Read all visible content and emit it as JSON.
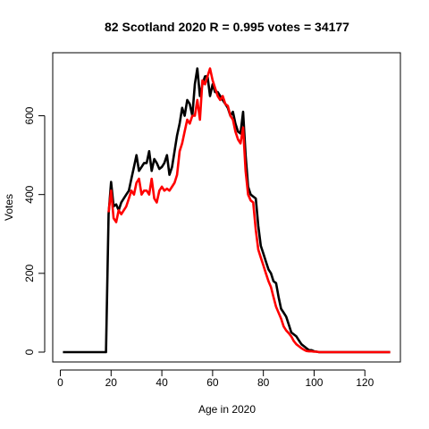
{
  "chart_data": {
    "type": "line",
    "title": "82 Scotland 2020 R = 0.995 votes = 34177",
    "xlabel": "Age in 2020",
    "ylabel": "Votes",
    "xlim": [
      -3,
      134
    ],
    "ylim": [
      -25,
      760
    ],
    "xticks": [
      0,
      20,
      40,
      60,
      80,
      100,
      120
    ],
    "yticks": [
      0,
      200,
      400,
      600
    ],
    "grid": false,
    "legend": "none",
    "series": [
      {
        "color": "#000000",
        "x": [
          1,
          2,
          3,
          4,
          5,
          6,
          7,
          8,
          9,
          10,
          11,
          12,
          13,
          14,
          15,
          16,
          17,
          18,
          19,
          20,
          21,
          22,
          23,
          24,
          25,
          26,
          27,
          28,
          29,
          30,
          31,
          32,
          33,
          34,
          35,
          36,
          37,
          38,
          39,
          40,
          41,
          42,
          43,
          44,
          45,
          46,
          47,
          48,
          49,
          50,
          51,
          52,
          53,
          54,
          55,
          56,
          57,
          58,
          59,
          60,
          61,
          62,
          63,
          64,
          65,
          66,
          67,
          68,
          69,
          70,
          71,
          72,
          73,
          74,
          75,
          76,
          77,
          78,
          79,
          80,
          81,
          82,
          83,
          84,
          85,
          86,
          87,
          88,
          89,
          90,
          91,
          92,
          93,
          94,
          95,
          96,
          97,
          98,
          99,
          100,
          101,
          102,
          103,
          104,
          105,
          106,
          107,
          108,
          109,
          110,
          111,
          112,
          113,
          114,
          115,
          116,
          117,
          118,
          119,
          120,
          121,
          122,
          123,
          124,
          125,
          126,
          127,
          128,
          129,
          130
        ],
        "y": [
          0,
          0,
          0,
          0,
          0,
          0,
          0,
          0,
          0,
          0,
          0,
          0,
          0,
          0,
          0,
          0,
          0,
          0,
          350,
          432,
          370,
          375,
          360,
          380,
          390,
          400,
          410,
          440,
          470,
          500,
          460,
          470,
          480,
          480,
          510,
          460,
          490,
          480,
          465,
          470,
          480,
          500,
          450,
          470,
          510,
          550,
          580,
          620,
          600,
          640,
          630,
          600,
          680,
          720,
          650,
          680,
          700,
          700,
          650,
          680,
          660,
          660,
          650,
          640,
          630,
          620,
          600,
          610,
          580,
          560,
          555,
          610,
          500,
          420,
          400,
          395,
          390,
          320,
          270,
          250,
          230,
          210,
          200,
          180,
          175,
          140,
          110,
          100,
          90,
          70,
          50,
          45,
          40,
          30,
          20,
          15,
          10,
          5,
          5,
          2,
          1,
          0,
          0,
          0,
          0,
          0,
          0,
          0,
          0,
          0,
          0,
          0,
          0,
          0,
          0,
          0,
          0,
          0,
          0,
          0,
          0,
          0,
          0,
          0,
          0,
          0,
          0,
          0,
          0,
          0
        ]
      },
      {
        "color": "#ff0000",
        "x": [
          19,
          20,
          21,
          22,
          23,
          24,
          25,
          26,
          27,
          28,
          29,
          30,
          31,
          32,
          33,
          34,
          35,
          36,
          37,
          38,
          39,
          40,
          41,
          42,
          43,
          44,
          45,
          46,
          47,
          48,
          49,
          50,
          51,
          52,
          53,
          54,
          55,
          56,
          57,
          58,
          59,
          60,
          61,
          62,
          63,
          64,
          65,
          66,
          67,
          68,
          69,
          70,
          71,
          72,
          73,
          74,
          75,
          76,
          77,
          78,
          79,
          80,
          81,
          82,
          83,
          84,
          85,
          86,
          87,
          88,
          89,
          90,
          91,
          92,
          93,
          94,
          95,
          96,
          97,
          98,
          99,
          100,
          101,
          102,
          103,
          104,
          105,
          106,
          107,
          108,
          109,
          110,
          111,
          112,
          113,
          114,
          115,
          116,
          117,
          118,
          119,
          120,
          121,
          122,
          123,
          124,
          125,
          126,
          127,
          128,
          129,
          130
        ],
        "y": [
          355,
          410,
          340,
          330,
          360,
          350,
          360,
          370,
          390,
          410,
          400,
          430,
          440,
          400,
          410,
          410,
          400,
          440,
          390,
          380,
          410,
          420,
          410,
          415,
          410,
          420,
          430,
          450,
          510,
          530,
          560,
          590,
          580,
          600,
          600,
          640,
          590,
          690,
          680,
          700,
          720,
          690,
          670,
          650,
          640,
          650,
          630,
          625,
          600,
          590,
          560,
          540,
          530,
          570,
          460,
          400,
          385,
          380,
          310,
          260,
          240,
          220,
          200,
          180,
          165,
          140,
          115,
          100,
          85,
          65,
          55,
          48,
          40,
          28,
          20,
          15,
          10,
          6,
          3,
          2,
          2,
          1,
          1,
          0,
          0,
          0,
          0,
          0,
          0,
          0,
          0,
          0,
          0,
          0,
          0,
          0,
          0,
          0,
          0,
          0,
          0,
          0,
          0,
          0,
          0,
          0,
          0,
          0,
          0,
          0,
          0,
          0
        ]
      }
    ]
  }
}
